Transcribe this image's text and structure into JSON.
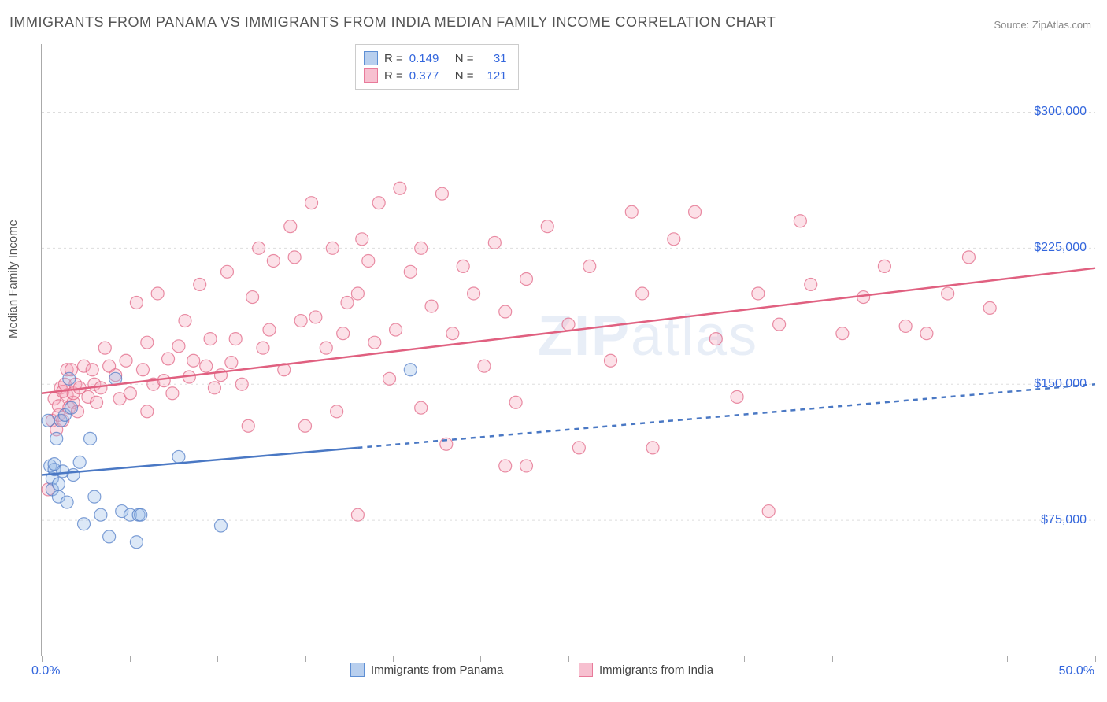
{
  "title": "IMMIGRANTS FROM PANAMA VS IMMIGRANTS FROM INDIA MEDIAN FAMILY INCOME CORRELATION CHART",
  "source_label": "Source: ",
  "source_name": "ZipAtlas.com",
  "ylabel": "Median Family Income",
  "watermark": {
    "z": "ZIP",
    "rest": "atlas"
  },
  "chart": {
    "type": "scatter",
    "background_color": "#ffffff",
    "grid_color": "#dddddd",
    "axis_color": "#aaaaaa",
    "xlim": [
      0,
      50
    ],
    "ylim": [
      0,
      337500
    ],
    "x_ticks_minor": [
      0,
      4.17,
      8.33,
      12.5,
      16.67,
      20.83,
      25,
      29.17,
      33.33,
      37.5,
      41.67,
      45.83,
      50
    ],
    "x_tick_labels": [
      {
        "value": 0,
        "label": "0.0%"
      },
      {
        "value": 50,
        "label": "50.0%"
      }
    ],
    "y_grid": [
      75000,
      150000,
      225000,
      300000
    ],
    "y_tick_labels": [
      {
        "value": 75000,
        "label": "$75,000"
      },
      {
        "value": 150000,
        "label": "$150,000"
      },
      {
        "value": 225000,
        "label": "$225,000"
      },
      {
        "value": 300000,
        "label": "$300,000"
      }
    ],
    "marker_radius": 8,
    "marker_fill_opacity": 0.35,
    "marker_stroke_width": 1.2,
    "trend_line_width": 2.5,
    "label_fontsize": 16,
    "label_color": "#3366dd"
  },
  "series": [
    {
      "id": "panama",
      "name": "Immigrants from Panama",
      "color_stroke": "#4a78c4",
      "color_fill": "#9cbce8",
      "swatch_fill": "#b8cfee",
      "swatch_border": "#5e8fd4",
      "R": "0.149",
      "N": "31",
      "trend": {
        "solid": {
          "x1": 0,
          "y1": 100000,
          "x2": 15,
          "y2": 115000
        },
        "dashed": {
          "x1": 15,
          "y1": 115000,
          "x2": 50,
          "y2": 150000
        }
      },
      "points": [
        [
          0.3,
          130000
        ],
        [
          0.4,
          105000
        ],
        [
          0.5,
          98000
        ],
        [
          0.5,
          92000
        ],
        [
          0.6,
          103000
        ],
        [
          0.6,
          106000
        ],
        [
          0.7,
          120000
        ],
        [
          0.8,
          95000
        ],
        [
          0.8,
          88000
        ],
        [
          0.9,
          130000
        ],
        [
          1.0,
          102000
        ],
        [
          1.1,
          133000
        ],
        [
          1.2,
          85000
        ],
        [
          1.3,
          153000
        ],
        [
          1.4,
          137000
        ],
        [
          1.5,
          100000
        ],
        [
          1.8,
          107000
        ],
        [
          2.0,
          73000
        ],
        [
          2.3,
          120000
        ],
        [
          2.5,
          88000
        ],
        [
          2.8,
          78000
        ],
        [
          3.2,
          66000
        ],
        [
          3.5,
          153000
        ],
        [
          3.8,
          80000
        ],
        [
          4.2,
          78000
        ],
        [
          4.5,
          63000
        ],
        [
          4.6,
          78000
        ],
        [
          4.7,
          78000
        ],
        [
          6.5,
          110000
        ],
        [
          8.5,
          72000
        ],
        [
          17.5,
          158000
        ]
      ]
    },
    {
      "id": "india",
      "name": "Immigrants from India",
      "color_stroke": "#e06080",
      "color_fill": "#f5a8bc",
      "swatch_fill": "#f7c0d0",
      "swatch_border": "#e87a9a",
      "R": "0.377",
      "N": "121",
      "trend": {
        "solid": {
          "x1": 0,
          "y1": 145000,
          "x2": 50,
          "y2": 214000
        },
        "dashed": null
      },
      "points": [
        [
          0.3,
          92000
        ],
        [
          0.5,
          130000
        ],
        [
          0.6,
          142000
        ],
        [
          0.7,
          125000
        ],
        [
          0.8,
          133000
        ],
        [
          0.8,
          138000
        ],
        [
          0.9,
          148000
        ],
        [
          1.0,
          130000
        ],
        [
          1.0,
          146000
        ],
        [
          1.1,
          150000
        ],
        [
          1.2,
          158000
        ],
        [
          1.2,
          144000
        ],
        [
          1.3,
          137000
        ],
        [
          1.4,
          158000
        ],
        [
          1.5,
          140000
        ],
        [
          1.5,
          145000
        ],
        [
          1.6,
          150000
        ],
        [
          1.7,
          135000
        ],
        [
          1.8,
          148000
        ],
        [
          2.0,
          160000
        ],
        [
          2.2,
          143000
        ],
        [
          2.4,
          158000
        ],
        [
          2.5,
          150000
        ],
        [
          2.6,
          140000
        ],
        [
          2.8,
          148000
        ],
        [
          3.0,
          170000
        ],
        [
          3.2,
          160000
        ],
        [
          3.5,
          155000
        ],
        [
          3.7,
          142000
        ],
        [
          4.0,
          163000
        ],
        [
          4.2,
          145000
        ],
        [
          4.5,
          195000
        ],
        [
          4.8,
          158000
        ],
        [
          5.0,
          173000
        ],
        [
          5.0,
          135000
        ],
        [
          5.3,
          150000
        ],
        [
          5.5,
          200000
        ],
        [
          5.8,
          152000
        ],
        [
          6.0,
          164000
        ],
        [
          6.2,
          145000
        ],
        [
          6.5,
          171000
        ],
        [
          6.8,
          185000
        ],
        [
          7.0,
          154000
        ],
        [
          7.2,
          163000
        ],
        [
          7.5,
          205000
        ],
        [
          7.8,
          160000
        ],
        [
          8.0,
          175000
        ],
        [
          8.2,
          148000
        ],
        [
          8.5,
          155000
        ],
        [
          8.8,
          212000
        ],
        [
          9.0,
          162000
        ],
        [
          9.2,
          175000
        ],
        [
          9.5,
          150000
        ],
        [
          9.8,
          127000
        ],
        [
          10.0,
          198000
        ],
        [
          10.3,
          225000
        ],
        [
          10.5,
          170000
        ],
        [
          10.8,
          180000
        ],
        [
          11.0,
          218000
        ],
        [
          11.5,
          158000
        ],
        [
          11.8,
          237000
        ],
        [
          12.0,
          220000
        ],
        [
          12.3,
          185000
        ],
        [
          12.5,
          127000
        ],
        [
          12.8,
          250000
        ],
        [
          13.0,
          187000
        ],
        [
          13.5,
          170000
        ],
        [
          13.8,
          225000
        ],
        [
          14.0,
          135000
        ],
        [
          14.3,
          178000
        ],
        [
          14.5,
          195000
        ],
        [
          15.0,
          78000
        ],
        [
          15.0,
          200000
        ],
        [
          15.2,
          230000
        ],
        [
          15.5,
          218000
        ],
        [
          15.8,
          173000
        ],
        [
          16.0,
          250000
        ],
        [
          16.5,
          153000
        ],
        [
          16.8,
          180000
        ],
        [
          17.0,
          258000
        ],
        [
          17.5,
          212000
        ],
        [
          18.0,
          225000
        ],
        [
          18.0,
          137000
        ],
        [
          18.5,
          193000
        ],
        [
          19.0,
          255000
        ],
        [
          19.2,
          117000
        ],
        [
          19.5,
          178000
        ],
        [
          20.0,
          215000
        ],
        [
          20.5,
          200000
        ],
        [
          21.0,
          160000
        ],
        [
          21.5,
          228000
        ],
        [
          22.0,
          105000
        ],
        [
          22.0,
          190000
        ],
        [
          22.5,
          140000
        ],
        [
          23.0,
          208000
        ],
        [
          23.0,
          105000
        ],
        [
          24.0,
          237000
        ],
        [
          25.0,
          183000
        ],
        [
          25.5,
          115000
        ],
        [
          26.0,
          215000
        ],
        [
          27.0,
          163000
        ],
        [
          28.0,
          245000
        ],
        [
          28.5,
          200000
        ],
        [
          29.0,
          115000
        ],
        [
          30.0,
          230000
        ],
        [
          31.0,
          245000
        ],
        [
          32.0,
          175000
        ],
        [
          33.0,
          143000
        ],
        [
          34.0,
          200000
        ],
        [
          34.5,
          80000
        ],
        [
          35.0,
          183000
        ],
        [
          36.0,
          240000
        ],
        [
          36.5,
          205000
        ],
        [
          38.0,
          178000
        ],
        [
          39.0,
          198000
        ],
        [
          40.0,
          215000
        ],
        [
          41.0,
          182000
        ],
        [
          42.0,
          178000
        ],
        [
          43.0,
          200000
        ],
        [
          44.0,
          220000
        ],
        [
          45.0,
          192000
        ]
      ]
    }
  ],
  "stats_box": {
    "R_label": "R =",
    "N_label": "N ="
  },
  "legend": {
    "left_label": "Immigrants from Panama",
    "right_label": "Immigrants from India"
  }
}
